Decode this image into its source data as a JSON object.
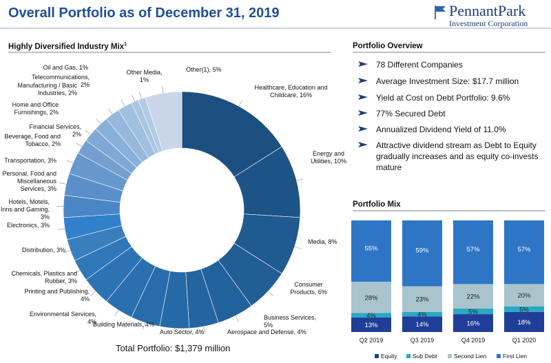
{
  "header": {
    "title": "Overall Portfolio as of December 31, 2019",
    "logo_name": "PennantPark",
    "logo_sub": "Investment Corporation"
  },
  "overview": {
    "title": "Portfolio Overview",
    "bullets": [
      "78 Different Companies",
      "Average Investment Size: $17.7 million",
      "Yield at Cost on Debt Portfolio: 9.6%",
      "77% Secured Debt",
      "Annualized Dividend Yield of 11.0%",
      "Attractive dividend stream as Debt to Equity gradually increases and as equity co-invests mature"
    ]
  },
  "chart_data": [
    {
      "type": "donut",
      "title": "Highly Diversified Industry Mix",
      "title_note": "1",
      "annotation": "Total Portfolio: $1,379 million",
      "categories": [
        "Healthcare, Education and Childcare, 16%",
        "Energy and Utilities, 10%",
        "Media, 8%",
        "Consumer Products, 6%",
        "Business Services, 5%",
        "Aerospace and Defense, 4%",
        "Auto Sector, 4%",
        "Building Materials, 4%",
        "Environmental Services, 4%",
        "Printing and Publishing, 4%",
        "Chemicals, Plastics and Rubber, 3%",
        "Distribution, 3%",
        "Electronics, 3%",
        "Hotels, Motels, Inns and Gaming, 3%",
        "Personal, Food and Miscellaneous Services, 3%",
        "Transportation, 3%",
        "Beverage, Food and Tobacco, 2%",
        "Financial Services, 2%",
        "Home and Office Furnishings, 2%",
        "Manufacturing / Basic Industries, 2%",
        "Telecommunications, 2%",
        "Oil and Gas, 1%",
        "Other Media, 1%",
        "Other(1), 5%"
      ],
      "values": [
        16,
        10,
        8,
        6,
        5,
        4,
        4,
        4,
        4,
        4,
        3,
        3,
        3,
        3,
        3,
        3,
        2,
        2,
        2,
        2,
        2,
        1,
        1,
        5
      ],
      "colors": [
        "#1b4f7f",
        "#1d5488",
        "#1f5a90",
        "#215e96",
        "#22629c",
        "#2465a1",
        "#2669a7",
        "#286cab",
        "#2a6faf",
        "#2c73b4",
        "#2f77b9",
        "#3a7fbd",
        "#3080cc",
        "#4a86c6",
        "#5a8fc9",
        "#6697cd",
        "#749fd0",
        "#7ea8d5",
        "#89b0d9",
        "#95b8dc",
        "#a0c0e0",
        "#a9c5e2",
        "#b2cbe5",
        "#c9d6ea"
      ]
    },
    {
      "type": "stacked_bar",
      "title": "Portfolio Mix",
      "categories": [
        "Q2 2019",
        "Q3 2019",
        "Q4 2019",
        "Q1 2020"
      ],
      "ylim": [
        0,
        100
      ],
      "series": [
        {
          "name": "Equity",
          "color": "#203e98",
          "values": [
            13,
            14,
            16,
            18
          ],
          "value_labels": [
            "13%",
            "14%",
            "16%",
            "18%"
          ]
        },
        {
          "name": "Sub Debt",
          "color": "#2aa8c4",
          "values": [
            4,
            4,
            5,
            5
          ],
          "value_labels": [
            "4%",
            "4%",
            "5%",
            "5%"
          ]
        },
        {
          "name": "Second Lien",
          "color": "#a9c4cc",
          "values": [
            28,
            23,
            22,
            20
          ],
          "value_labels": [
            "28%",
            "23%",
            "22%",
            "20%"
          ]
        },
        {
          "name": "First Lien",
          "color": "#2e75c6",
          "values": [
            55,
            59,
            57,
            57
          ],
          "value_labels": [
            "55%",
            "59%",
            "57%",
            "57%"
          ]
        }
      ]
    }
  ]
}
